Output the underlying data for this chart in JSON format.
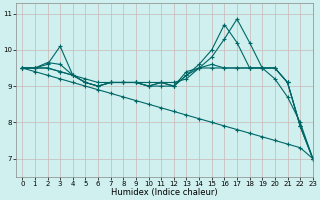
{
  "xlabel": "Humidex (Indice chaleur)",
  "bg_color": "#cff0ee",
  "line_color": "#006666",
  "grid_major_color": "#c8b8b8",
  "grid_minor_color": "#c8b8b8",
  "xlim": [
    -0.5,
    23
  ],
  "ylim": [
    6.5,
    11.3
  ],
  "yticks": [
    7,
    8,
    9,
    10,
    11
  ],
  "xtick_labels": [
    "0",
    "1",
    "2",
    "3",
    "4",
    "5",
    "6",
    "7",
    "8",
    "9",
    "10",
    "11",
    "12",
    "13",
    "14",
    "15",
    "16",
    "17",
    "18",
    "19",
    "20",
    "21",
    "22",
    "23"
  ],
  "lines": [
    [
      9.5,
      9.5,
      9.6,
      10.1,
      9.3,
      9.2,
      9.1,
      9.1,
      9.1,
      9.1,
      9.1,
      9.1,
      9.1,
      9.2,
      9.5,
      9.5,
      9.5,
      9.5,
      9.5,
      9.5,
      9.5,
      9.1,
      7.9,
      7.0
    ],
    [
      9.5,
      9.5,
      9.65,
      9.6,
      9.3,
      9.1,
      9.0,
      9.1,
      9.1,
      9.1,
      9.0,
      9.1,
      9.0,
      9.3,
      9.5,
      9.6,
      9.5,
      9.5,
      9.5,
      9.5,
      9.5,
      9.1,
      7.9,
      7.0
    ],
    [
      9.5,
      9.5,
      9.5,
      9.4,
      9.3,
      9.1,
      9.0,
      9.1,
      9.1,
      9.1,
      9.0,
      9.1,
      9.0,
      9.4,
      9.5,
      9.8,
      10.3,
      10.85,
      10.2,
      9.5,
      9.2,
      8.7,
      8.0,
      7.0
    ],
    [
      9.5,
      9.5,
      9.5,
      9.4,
      9.3,
      9.1,
      9.0,
      9.1,
      9.1,
      9.1,
      9.0,
      9.0,
      9.0,
      9.3,
      9.6,
      10.0,
      10.7,
      10.2,
      9.5,
      9.5,
      9.5,
      9.1,
      7.9,
      7.0
    ],
    [
      9.5,
      9.4,
      9.3,
      9.2,
      9.1,
      9.0,
      8.9,
      8.8,
      8.7,
      8.6,
      8.5,
      8.4,
      8.3,
      8.2,
      8.1,
      8.0,
      7.9,
      7.8,
      7.7,
      7.6,
      7.5,
      7.4,
      7.3,
      7.0
    ]
  ]
}
